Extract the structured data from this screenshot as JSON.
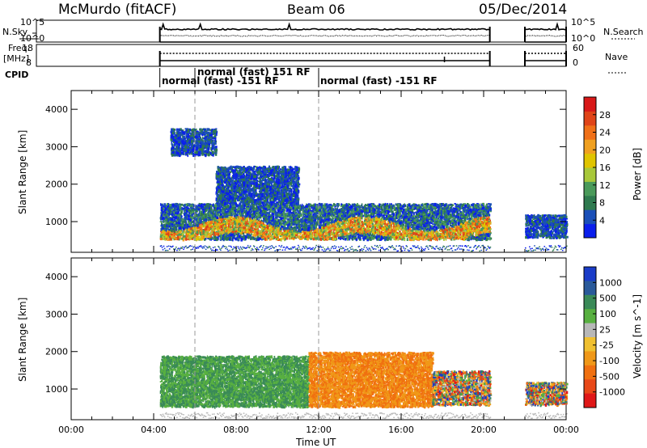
{
  "header": {
    "station": "McMurdo (fitACF)",
    "beam": "Beam 06",
    "date": "05/Dec/2014"
  },
  "small_panels": {
    "nsky": {
      "label": "N.Sky",
      "ticks": [
        "10^5",
        "10^0"
      ]
    },
    "nsearch": {
      "label": "N.Search",
      "ticks": [
        "10^5",
        "10^0"
      ]
    },
    "freq": {
      "label_line1": "Freq.",
      "label_line2": "[MHz]",
      "ticks": [
        "18",
        "8"
      ]
    },
    "nave": {
      "label": "Nave",
      "ticks": [
        "60",
        "0"
      ]
    },
    "cpid": {
      "label": "CPID",
      "modes": [
        {
          "text": "normal (fast) -151 RF",
          "start_hour": 4.3
        },
        {
          "text": "normal (fast) 151 RF",
          "start_hour": 6.0
        },
        {
          "text": "normal (fast) -151 RF",
          "start_hour": 12.0
        }
      ]
    },
    "data_spans": [
      [
        4.3,
        20.3
      ],
      [
        22.0,
        24.0
      ]
    ]
  },
  "chart_data": [
    {
      "type": "heatmap",
      "name": "power",
      "xlabel": "",
      "ylabel": "Slant Range [km]",
      "xlim": [
        0,
        24
      ],
      "ylim": [
        180,
        4500
      ],
      "yticks": [
        "1000",
        "2000",
        "3000",
        "4000"
      ],
      "colorbar": {
        "title": "Power [dB]",
        "ticks": [
          "4",
          "8",
          "12",
          "16",
          "20",
          "24",
          "28"
        ],
        "colors": [
          "#0a1eec",
          "#1a4fb8",
          "#2f7a4f",
          "#4a9a5a",
          "#a8c83a",
          "#e0c400",
          "#f0a020",
          "#f07018",
          "#e04418",
          "#d81818"
        ]
      },
      "scatter_regions": [
        {
          "hours": [
            4.3,
            20.3
          ],
          "range_km": [
            550,
            1500
          ],
          "level": "mixed"
        },
        {
          "hours": [
            7.0,
            11.0
          ],
          "range_km": [
            1500,
            2500
          ],
          "level": "low"
        },
        {
          "hours": [
            4.8,
            7.0
          ],
          "range_km": [
            2800,
            3500
          ],
          "level": "low"
        },
        {
          "hours": [
            22.0,
            24.0
          ],
          "range_km": [
            600,
            1200
          ],
          "level": "low"
        }
      ]
    },
    {
      "type": "heatmap",
      "name": "velocity",
      "xlabel": "Time UT",
      "ylabel": "Slant Range [km]",
      "xlim": [
        0,
        24
      ],
      "ylim": [
        180,
        4500
      ],
      "yticks": [
        "1000",
        "2000",
        "3000",
        "4000"
      ],
      "xticks": [
        "00:00",
        "04:00",
        "08:00",
        "12:00",
        "16:00",
        "20:00",
        "00:00"
      ],
      "colorbar": {
        "title": "Velocity [m s^-1]",
        "ticks": [
          "1000",
          "500",
          "100",
          "25",
          "-25",
          "-100",
          "-500",
          "-1000"
        ],
        "colors": [
          "#1a3cc8",
          "#2a5a9a",
          "#3a8a58",
          "#58b040",
          "#b8b8b8",
          "#f0c030",
          "#f09818",
          "#f07010",
          "#e84818",
          "#e01818"
        ]
      },
      "scatter_regions": [
        {
          "hours": [
            4.3,
            11.5
          ],
          "range_km": [
            550,
            1900
          ],
          "level": "toward"
        },
        {
          "hours": [
            11.5,
            17.5
          ],
          "range_km": [
            550,
            2000
          ],
          "level": "away"
        },
        {
          "hours": [
            17.5,
            20.3
          ],
          "range_km": [
            600,
            1500
          ],
          "level": "mixed"
        },
        {
          "hours": [
            22.0,
            24.0
          ],
          "range_km": [
            600,
            1200
          ],
          "level": "mixed"
        }
      ]
    }
  ]
}
